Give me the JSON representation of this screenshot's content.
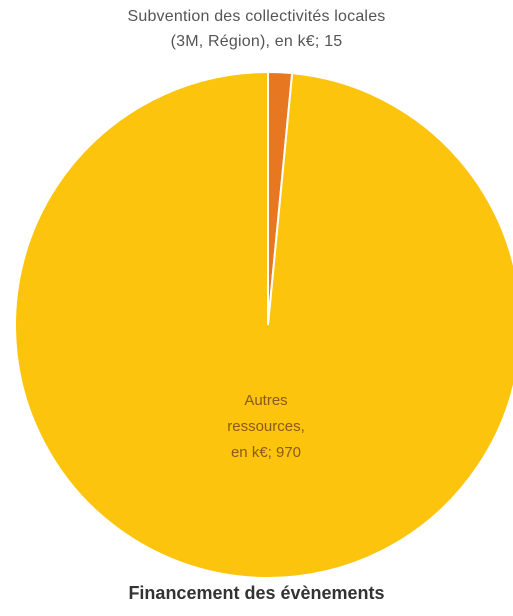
{
  "chart_data": {
    "type": "pie",
    "title": "Financement des évènements",
    "slices": [
      {
        "label_lines": [
          "Subvention des collectivités locales",
          "(3M, Région), en k€; 15"
        ],
        "value": 15,
        "color": "#e87722"
      },
      {
        "label_lines": [
          "Autres",
          "ressources,",
          "en k€; 970"
        ],
        "value": 970,
        "color": "#fcc40c"
      }
    ],
    "legend": "none"
  }
}
